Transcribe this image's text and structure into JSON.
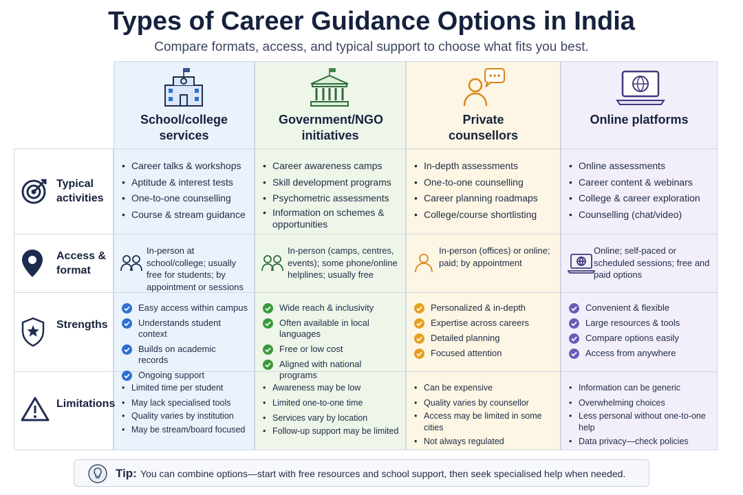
{
  "header": {
    "title": "Types of Career Guidance Options in India",
    "subtitle": "Compare formats, access, and typical support to choose what fits you best."
  },
  "table": {
    "columns": [
      {
        "title": "School/college services"
      },
      {
        "title": "Government/NGO initiatives"
      },
      {
        "title": "Private counsellors"
      },
      {
        "title": "Online platforms"
      }
    ],
    "rows": [
      {
        "label": "Typical activities",
        "cells": [
          [
            "Career talks & workshops",
            "Aptitude & interest tests",
            "One-to-one counselling",
            "Course & stream guidance"
          ],
          [
            "Career awareness camps",
            "Skill development programs",
            "Psychometric assessments",
            "Information on schemes & opportunities"
          ],
          [
            "In-depth assessments",
            "One-to-one counselling",
            "Career planning roadmaps",
            "College/course shortlisting"
          ],
          [
            "Online assessments",
            "Career content & webinars",
            "College & career exploration",
            "Counselling (chat/video)"
          ]
        ]
      },
      {
        "label": "Access & format",
        "cells": [
          "In-person at school/college; usually free for students; by appointment or sessions",
          "In-person (camps, centres, events); some phone/online helplines; usually free",
          "In-person (offices) or online; paid; by appointment",
          "Online; self-paced or scheduled sessions; free and paid options"
        ]
      },
      {
        "label": "Strengths",
        "cells": [
          [
            "Easy access within campus",
            "Understands student context",
            "Builds on academic records",
            "Ongoing support"
          ],
          [
            "Wide reach & inclusivity",
            "Often available in local languages",
            "Free or low cost",
            "Aligned with national programs"
          ],
          [
            "Personalized & in-depth",
            "Expertise across careers",
            "Detailed planning",
            "Focused attention"
          ],
          [
            "Convenient & flexible",
            "Large resources & tools",
            "Compare options easily",
            "Access from anywhere"
          ]
        ]
      },
      {
        "label": "Limitations",
        "cells": [
          [
            "Limited time per student",
            "May lack specialised tools",
            "Quality varies by institution",
            "May be stream/board focused"
          ],
          [
            "Awareness may be low",
            "Limited one-to-one time",
            "Services vary by location",
            "Follow-up support may be limited"
          ],
          [
            "Can be expensive",
            "Quality varies by counsellor",
            "Access may be limited in some cities",
            "Not always regulated"
          ],
          [
            "Information can be generic",
            "Overwhelming choices",
            "Less personal without one-to-one help",
            "Data privacy—check policies"
          ]
        ]
      }
    ]
  },
  "tip": {
    "label": "Tip:",
    "text": "You can combine options—start with free resources and school support, then seek specialised help when needed."
  }
}
